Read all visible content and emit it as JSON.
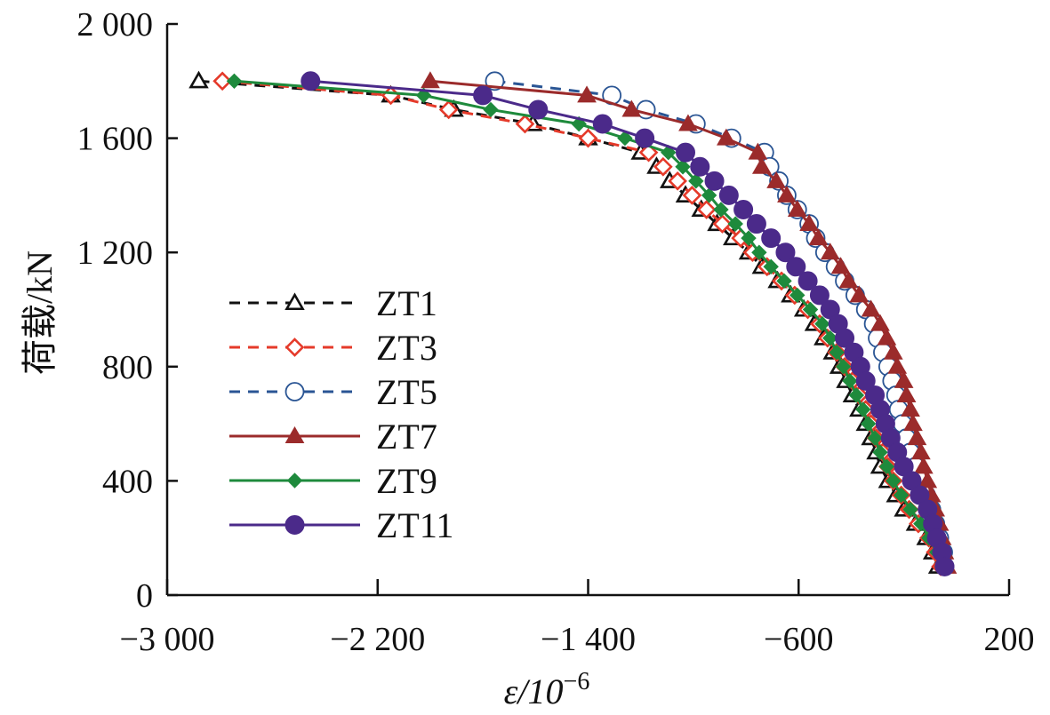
{
  "chart_data": {
    "type": "line",
    "title": "",
    "xlabel": "ε/10⁻⁶",
    "xlabel_base": "ε/10",
    "xlabel_exp": "−6",
    "ylabel": "荷载/kN",
    "xlim": [
      -3000,
      200
    ],
    "ylim": [
      0,
      2000
    ],
    "xticks": [
      -3000,
      -2200,
      -1400,
      -600,
      200
    ],
    "xtick_labels": [
      "−3 000",
      "−2 200",
      "−1 400",
      "−600",
      "200"
    ],
    "yticks": [
      0,
      400,
      800,
      1200,
      1600,
      2000
    ],
    "ytick_labels": [
      "0",
      "400",
      "800",
      "1 200",
      "1 600",
      "2 000"
    ],
    "grid": false,
    "legend_position": "center-left",
    "loads": [
      1800,
      1750,
      1700,
      1650,
      1600,
      1550,
      1500,
      1450,
      1400,
      1350,
      1300,
      1250,
      1200,
      1150,
      1100,
      1050,
      1000,
      950,
      900,
      850,
      800,
      750,
      700,
      650,
      600,
      550,
      500,
      450,
      400,
      350,
      300,
      250,
      200,
      150,
      100
    ],
    "series": [
      {
        "name": "ZT1",
        "color": "#111111",
        "dash": true,
        "marker": "triangle-open",
        "strain": [
          -2880,
          -2150,
          -1910,
          -1610,
          -1400,
          -1200,
          -1140,
          -1090,
          -1030,
          -970,
          -910,
          -850,
          -790,
          -740,
          -680,
          -630,
          -580,
          -540,
          -505,
          -470,
          -445,
          -420,
          -395,
          -370,
          -345,
          -325,
          -305,
          -290,
          -260,
          -230,
          -200,
          -155,
          -115,
          -90,
          -70
        ]
      },
      {
        "name": "ZT3",
        "color": "#e53a2a",
        "dash": true,
        "marker": "diamond-open",
        "strain": [
          -2790,
          -2150,
          -1930,
          -1640,
          -1400,
          -1170,
          -1115,
          -1060,
          -1005,
          -950,
          -890,
          -820,
          -775,
          -720,
          -665,
          -615,
          -565,
          -520,
          -490,
          -455,
          -425,
          -395,
          -370,
          -345,
          -325,
          -305,
          -280,
          -260,
          -240,
          -210,
          -180,
          -145,
          -105,
          -80,
          -60
        ]
      },
      {
        "name": "ZT5",
        "color": "#2a5594",
        "dash": true,
        "marker": "circle-open",
        "strain": [
          -1755,
          -1310,
          -1180,
          -990,
          -855,
          -730,
          -710,
          -675,
          -645,
          -605,
          -560,
          -535,
          -500,
          -460,
          -425,
          -385,
          -345,
          -315,
          -300,
          -280,
          -260,
          -245,
          -230,
          -220,
          -205,
          -190,
          -175,
          -155,
          -135,
          -115,
          -95,
          -80,
          -65,
          -50,
          -45
        ]
      },
      {
        "name": "ZT7",
        "color": "#9b2b2b",
        "dash": false,
        "marker": "triangle-filled",
        "strain": [
          -2000,
          -1405,
          -1235,
          -1020,
          -875,
          -755,
          -740,
          -685,
          -645,
          -605,
          -560,
          -525,
          -480,
          -440,
          -410,
          -370,
          -325,
          -290,
          -265,
          -240,
          -225,
          -200,
          -190,
          -175,
          -165,
          -150,
          -135,
          -125,
          -110,
          -95,
          -80,
          -65,
          -55,
          -45,
          -35
        ]
      },
      {
        "name": "ZT9",
        "color": "#1e8a3c",
        "dash": false,
        "marker": "diamond-filled",
        "strain": [
          -2745,
          -2025,
          -1770,
          -1435,
          -1260,
          -1095,
          -1040,
          -990,
          -940,
          -895,
          -840,
          -790,
          -750,
          -705,
          -655,
          -605,
          -555,
          -510,
          -480,
          -455,
          -430,
          -405,
          -380,
          -355,
          -335,
          -310,
          -290,
          -265,
          -240,
          -210,
          -175,
          -135,
          -105,
          -75,
          -55
        ]
      },
      {
        "name": "ZT11",
        "color": "#4b2a8a",
        "dash": false,
        "marker": "circle-filled",
        "strain": [
          -2455,
          -1800,
          -1590,
          -1345,
          -1185,
          -1030,
          -975,
          -920,
          -865,
          -810,
          -760,
          -705,
          -650,
          -610,
          -565,
          -520,
          -480,
          -450,
          -425,
          -390,
          -365,
          -345,
          -310,
          -290,
          -270,
          -250,
          -225,
          -200,
          -170,
          -140,
          -110,
          -90,
          -75,
          -55,
          -45
        ]
      }
    ]
  }
}
